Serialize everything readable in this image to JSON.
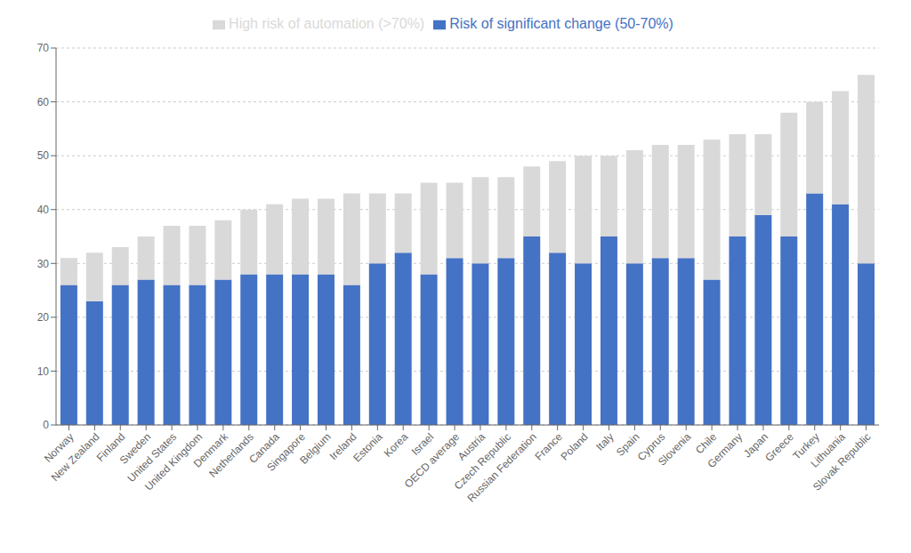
{
  "chart_data": {
    "type": "bar",
    "stacked": true,
    "grid": true,
    "legend": "top",
    "categories": [
      "Norway",
      "New Zealand",
      "Finland",
      "Sweden",
      "United States",
      "United Kingdom",
      "Denmark",
      "Netherlands",
      "Canada",
      "Singapore",
      "Belgium",
      "Ireland",
      "Estonia",
      "Korea",
      "Israel",
      "OECD average",
      "Austria",
      "Czech Republic",
      "Russian Federation",
      "France",
      "Poland",
      "Italy",
      "Spain",
      "Cyprus",
      "Slovenia",
      "Chile",
      "Germany",
      "Japan",
      "Greece",
      "Turkey",
      "Lithuania",
      "Slovak Republic"
    ],
    "series": [
      {
        "name": "Risk of significant change (50-70%)",
        "color": "#4472C4",
        "values": [
          26,
          23,
          26,
          27,
          26,
          26,
          27,
          28,
          28,
          28,
          28,
          26,
          30,
          32,
          28,
          31,
          30,
          31,
          35,
          32,
          30,
          35,
          30,
          31,
          31,
          27,
          35,
          39,
          35,
          43,
          41,
          30
        ]
      },
      {
        "name": "High risk of automation (>70%)",
        "color": "#D9D9D9",
        "values": [
          5,
          9,
          7,
          8,
          11,
          11,
          11,
          12,
          13,
          14,
          14,
          17,
          13,
          11,
          17,
          14,
          16,
          15,
          13,
          17,
          20,
          15,
          21,
          21,
          21,
          26,
          19,
          15,
          23,
          17,
          21,
          35
        ]
      }
    ],
    "ylim": [
      0,
      70
    ],
    "yticks": [
      0,
      10,
      20,
      30,
      40,
      50,
      60,
      70
    ]
  }
}
